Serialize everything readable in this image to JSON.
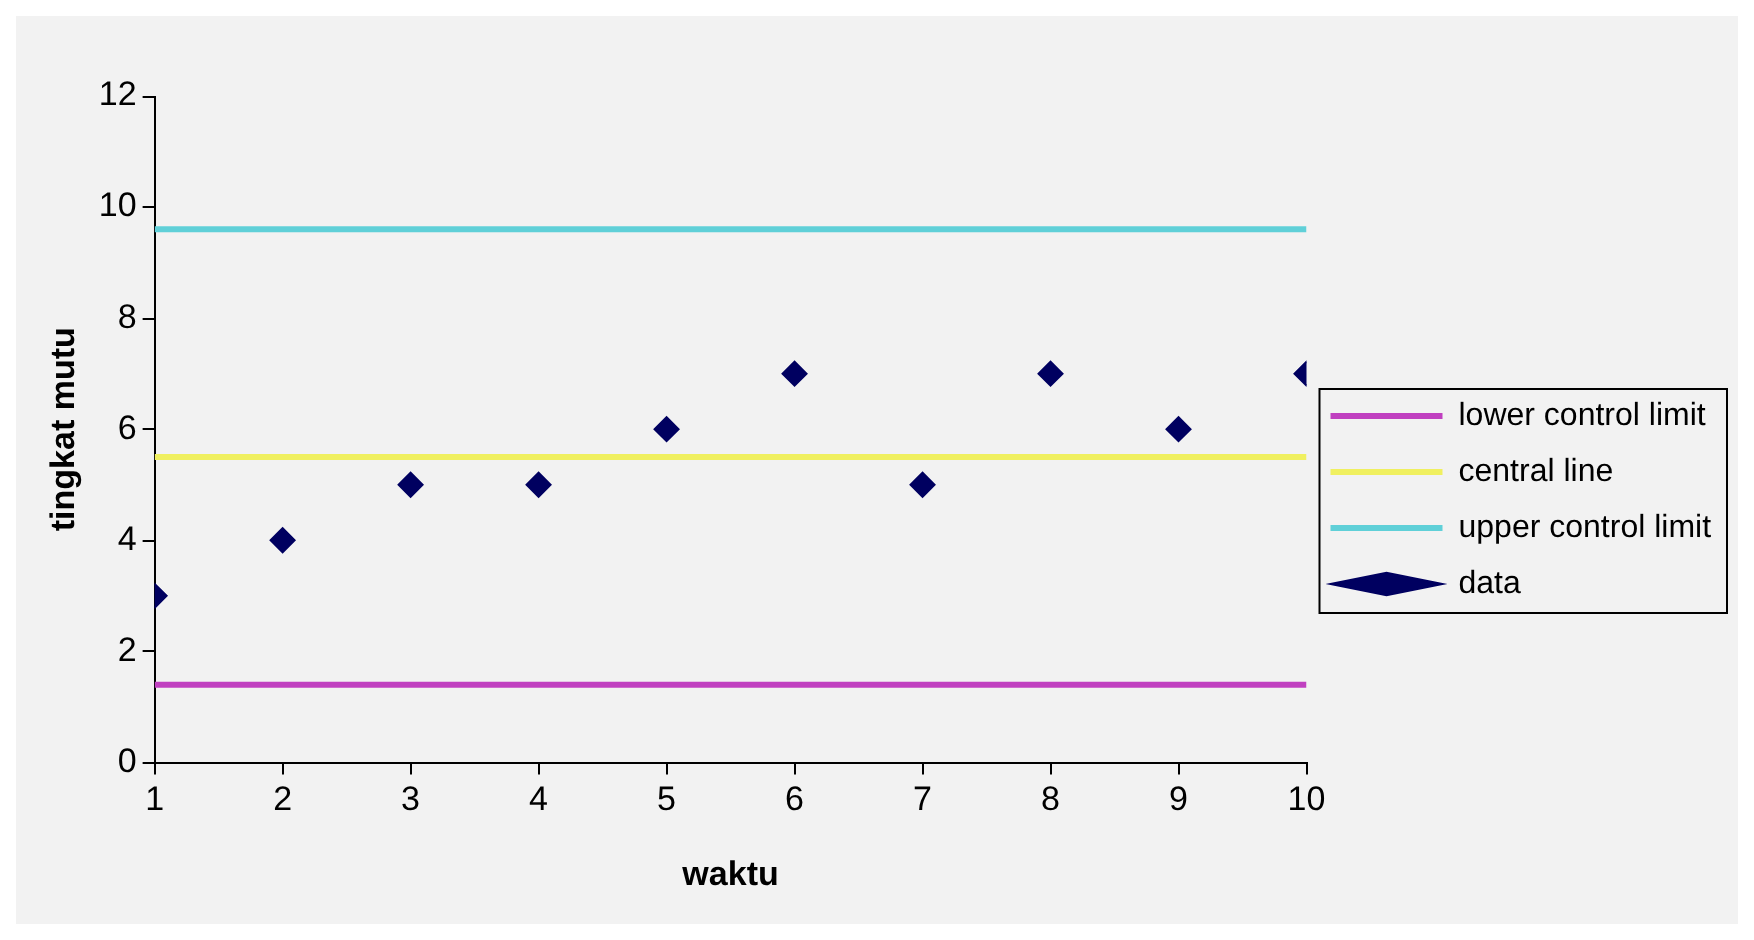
{
  "chart_data": {
    "type": "scatter",
    "xlabel": "waktu",
    "ylabel": "tingkat mutu",
    "xlim": [
      1,
      10
    ],
    "xticks": [
      1,
      2,
      3,
      4,
      5,
      6,
      7,
      8,
      9,
      10
    ],
    "ylim": [
      0,
      12
    ],
    "yticks": [
      0,
      2,
      4,
      6,
      8,
      10,
      12
    ],
    "grid": false,
    "legend": "right",
    "series": [
      {
        "name": "lower control limit",
        "type": "line",
        "color": "#c040c0",
        "x": [
          1,
          10
        ],
        "values": [
          1.4,
          1.4
        ]
      },
      {
        "name": "central line",
        "type": "line",
        "color": "#f0f060",
        "x": [
          1,
          10
        ],
        "values": [
          5.5,
          5.5
        ]
      },
      {
        "name": "upper control limit",
        "type": "line",
        "color": "#60d0d8",
        "x": [
          1,
          10
        ],
        "values": [
          9.6,
          9.6
        ]
      },
      {
        "name": "data",
        "type": "scatter",
        "marker": "diamond",
        "color": "#000060",
        "x": [
          1,
          2,
          3,
          4,
          5,
          6,
          7,
          8,
          9,
          10
        ],
        "values": [
          3,
          4,
          5,
          5,
          6,
          7,
          5,
          7,
          6,
          7
        ]
      }
    ]
  }
}
